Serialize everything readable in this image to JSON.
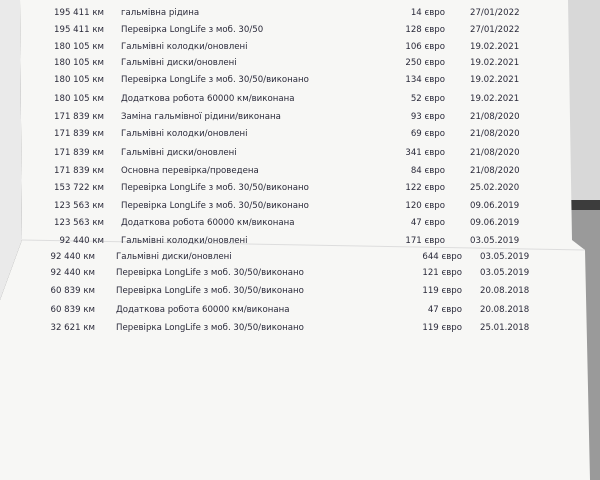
{
  "table": {
    "rows": [
      [
        "195 411 км",
        "гальмівна рідина",
        "14 євро",
        "27/01/2022"
      ],
      [
        "195 411 км",
        "Перевірка LongLife з моб. 30/50",
        "128 євро",
        "27/01/2022"
      ],
      [
        "180 105 км",
        "Гальмівні колодки/оновлені",
        "106 євро",
        "19.02.2021"
      ],
      [
        "180 105 км",
        "Гальмівні диски/оновлені",
        "250 євро",
        "19.02.2021"
      ],
      [
        "180 105 км",
        "Перевірка LongLife з моб. 30/50/виконано",
        "134 євро",
        "19.02.2021"
      ],
      [
        "180 105 км",
        "Додаткова робота 60000 км/виконана",
        "52 євро",
        "19.02.2021"
      ],
      [
        "171 839 км",
        "Заміна гальмівної рідини/виконана",
        "93 євро",
        "21/08/2020"
      ],
      [
        "171 839 км",
        "Гальмівні колодки/оновлені",
        "69 євро",
        "21/08/2020"
      ],
      [
        "171 839 км",
        "Гальмівні диски/оновлені",
        "341 євро",
        "21/08/2020"
      ],
      [
        "171 839 км",
        "Основна перевірка/проведена",
        "84 євро",
        "21/08/2020"
      ],
      [
        "153 722 км",
        "Перевірка LongLife з моб. 30/50/виконано",
        "122 євро",
        "25.02.2020"
      ],
      [
        "123 563 км",
        "Перевірка LongLife з моб. 30/50/виконано",
        "120 євро",
        "09.06.2019"
      ],
      [
        "123 563 км",
        "Додаткова робота 60000 км/виконана",
        "47 євро",
        "09.06.2019"
      ],
      [
        "92 440 км",
        "Гальмівні колодки/оновлені",
        "171 євро",
        "03.05.2019"
      ],
      [
        "92 440 км",
        "Гальмівні диски/оновлені",
        "644 євро",
        "03.05.2019"
      ],
      [
        "92 440 км",
        "Перевірка LongLife з моб. 30/50/виконано",
        "121 євро",
        "03.05.2019"
      ],
      [
        "60 839 км",
        "Перевірка LongLife з моб. 30/50/виконано",
        "119 євро",
        "20.08.2018"
      ],
      [
        "60 839 км",
        "Додаткова робота 60000 км/виконана",
        "47 євро",
        "20.08.2018"
      ],
      [
        "32 621 км",
        "Перевірка LongLife з моб. 30/50/виконано",
        "119 євро",
        "25.01.2018"
      ]
    ]
  }
}
